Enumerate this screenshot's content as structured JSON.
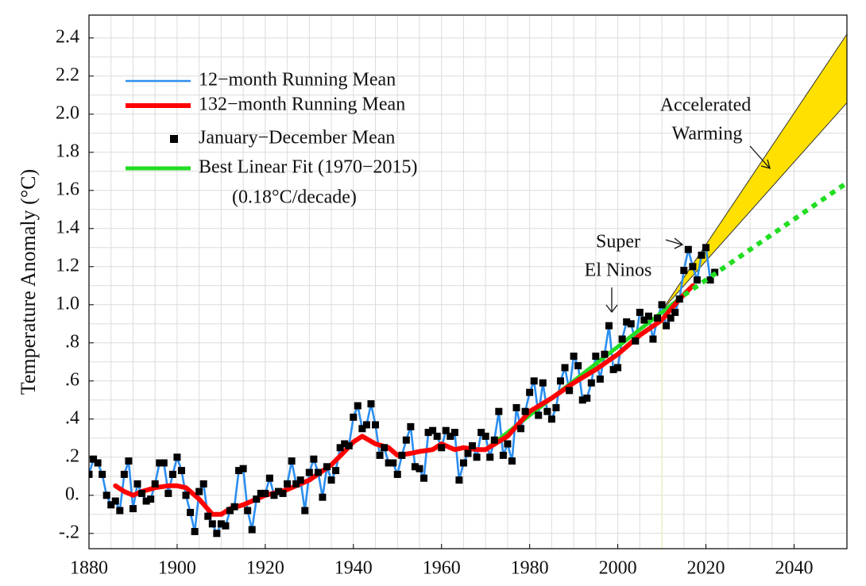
{
  "chart_data": {
    "type": "line",
    "ylabel": "Temperature Anomaly (°C)",
    "xlim": [
      1880,
      2052
    ],
    "ylim": [
      -0.28,
      2.52
    ],
    "xticks": [
      1880,
      1900,
      1920,
      1940,
      1960,
      1980,
      2000,
      2020,
      2040
    ],
    "yticks": [
      {
        "value": -0.2,
        "label": "-.2"
      },
      {
        "value": 0,
        "label": "0."
      },
      {
        "value": 0.2,
        "label": ".2"
      },
      {
        "value": 0.4,
        "label": ".4"
      },
      {
        "value": 0.6,
        "label": ".6"
      },
      {
        "value": 0.8,
        "label": ".8"
      },
      {
        "value": 1,
        "label": "1.0"
      },
      1.2,
      1.4,
      1.6,
      1.8,
      {
        "value": 2,
        "label": "2.0"
      },
      2.2,
      2.4
    ],
    "grid": true,
    "x": [
      1880,
      1881,
      1882,
      1883,
      1884,
      1885,
      1886,
      1887,
      1888,
      1889,
      1890,
      1891,
      1892,
      1893,
      1894,
      1895,
      1896,
      1897,
      1898,
      1899,
      1900,
      1901,
      1902,
      1903,
      1904,
      1905,
      1906,
      1907,
      1908,
      1909,
      1910,
      1911,
      1912,
      1913,
      1914,
      1915,
      1916,
      1917,
      1918,
      1919,
      1920,
      1921,
      1922,
      1923,
      1924,
      1925,
      1926,
      1927,
      1928,
      1929,
      1930,
      1931,
      1932,
      1933,
      1934,
      1935,
      1936,
      1937,
      1938,
      1939,
      1940,
      1941,
      1942,
      1943,
      1944,
      1945,
      1946,
      1947,
      1948,
      1949,
      1950,
      1951,
      1952,
      1953,
      1954,
      1955,
      1956,
      1957,
      1958,
      1959,
      1960,
      1961,
      1962,
      1963,
      1964,
      1965,
      1966,
      1967,
      1968,
      1969,
      1970,
      1971,
      1972,
      1973,
      1974,
      1975,
      1976,
      1977,
      1978,
      1979,
      1980,
      1981,
      1982,
      1983,
      1984,
      1985,
      1986,
      1987,
      1988,
      1989,
      1990,
      1991,
      1992,
      1993,
      1994,
      1995,
      1996,
      1997,
      1998,
      1999,
      2000,
      2001,
      2002,
      2003,
      2004,
      2005,
      2006,
      2007,
      2008,
      2009,
      2010,
      2011,
      2012,
      2013,
      2014,
      2015,
      2016,
      2017,
      2018,
      2019,
      2020,
      2021,
      2022
    ],
    "series": [
      {
        "name": "12−month Running Mean",
        "type": "line",
        "color": "#2b8ef0",
        "values": [
          0.11,
          0.19,
          0.17,
          0.11,
          0.0,
          -0.05,
          -0.03,
          -0.08,
          0.11,
          0.18,
          -0.07,
          0.06,
          0.01,
          -0.03,
          -0.02,
          0.06,
          0.17,
          0.17,
          0.01,
          0.11,
          0.2,
          0.13,
          0.0,
          -0.09,
          -0.19,
          0.02,
          0.06,
          -0.11,
          -0.15,
          -0.2,
          -0.15,
          -0.16,
          -0.08,
          -0.06,
          0.13,
          0.14,
          -0.08,
          -0.18,
          -0.02,
          0.01,
          0.01,
          0.09,
          0.0,
          0.02,
          0.01,
          0.06,
          0.18,
          0.06,
          0.08,
          -0.08,
          0.12,
          0.19,
          0.12,
          -0.01,
          0.15,
          0.08,
          0.13,
          0.25,
          0.27,
          0.26,
          0.41,
          0.47,
          0.35,
          0.37,
          0.48,
          0.37,
          0.21,
          0.25,
          0.17,
          0.17,
          0.11,
          0.21,
          0.29,
          0.36,
          0.15,
          0.14,
          0.09,
          0.33,
          0.34,
          0.31,
          0.25,
          0.34,
          0.31,
          0.33,
          0.08,
          0.17,
          0.22,
          0.26,
          0.2,
          0.33,
          0.31,
          0.2,
          0.29,
          0.44,
          0.21,
          0.27,
          0.18,
          0.46,
          0.35,
          0.44,
          0.54,
          0.6,
          0.42,
          0.59,
          0.44,
          0.4,
          0.46,
          0.6,
          0.67,
          0.55,
          0.73,
          0.68,
          0.5,
          0.51,
          0.59,
          0.73,
          0.61,
          0.74,
          0.89,
          0.66,
          0.67,
          0.82,
          0.91,
          0.9,
          0.81,
          0.96,
          0.92,
          0.94,
          0.82,
          0.93,
          1.0,
          0.89,
          0.93,
          0.96,
          1.03,
          1.18,
          1.29,
          1.2,
          1.13,
          1.26,
          1.3,
          1.13,
          1.17
        ]
      },
      {
        "name": "132−month Running Mean",
        "type": "line",
        "color": "#ff0000",
        "x": [
          1886,
          1888,
          1890,
          1892,
          1895,
          1898,
          1900,
          1902,
          1905,
          1908,
          1910,
          1912,
          1915,
          1918,
          1920,
          1925,
          1930,
          1935,
          1938,
          1940,
          1942,
          1945,
          1948,
          1950,
          1953,
          1955,
          1958,
          1960,
          1963,
          1965,
          1968,
          1970,
          1975,
          1980,
          1985,
          1990,
          1995,
          2000,
          2005,
          2010,
          2014,
          2017
        ],
        "values": [
          0.05,
          0.02,
          0.0,
          0.02,
          0.04,
          0.05,
          0.05,
          0.04,
          -0.02,
          -0.1,
          -0.1,
          -0.07,
          -0.05,
          -0.02,
          0.0,
          0.03,
          0.08,
          0.16,
          0.23,
          0.28,
          0.31,
          0.27,
          0.25,
          0.21,
          0.22,
          0.23,
          0.24,
          0.27,
          0.24,
          0.25,
          0.24,
          0.24,
          0.31,
          0.44,
          0.51,
          0.59,
          0.66,
          0.74,
          0.84,
          0.92,
          1.03,
          1.1
        ]
      },
      {
        "name": "January−December Mean",
        "type": "scatter",
        "color": "#000000",
        "values": [
          0.11,
          0.19,
          0.17,
          0.11,
          0.0,
          -0.05,
          -0.03,
          -0.08,
          0.11,
          0.18,
          -0.07,
          0.06,
          0.01,
          -0.03,
          -0.02,
          0.06,
          0.17,
          0.17,
          0.01,
          0.11,
          0.2,
          0.13,
          0.0,
          -0.09,
          -0.19,
          0.02,
          0.06,
          -0.11,
          -0.15,
          -0.2,
          -0.15,
          -0.16,
          -0.08,
          -0.06,
          0.13,
          0.14,
          -0.08,
          -0.18,
          -0.02,
          0.01,
          0.01,
          0.09,
          0.0,
          0.02,
          0.01,
          0.06,
          0.18,
          0.06,
          0.08,
          -0.08,
          0.12,
          0.19,
          0.12,
          -0.01,
          0.15,
          0.08,
          0.13,
          0.25,
          0.27,
          0.26,
          0.41,
          0.47,
          0.35,
          0.37,
          0.48,
          0.37,
          0.21,
          0.25,
          0.17,
          0.17,
          0.11,
          0.21,
          0.29,
          0.36,
          0.15,
          0.14,
          0.09,
          0.33,
          0.34,
          0.31,
          0.25,
          0.34,
          0.31,
          0.33,
          0.08,
          0.17,
          0.22,
          0.26,
          0.2,
          0.33,
          0.31,
          0.2,
          0.29,
          0.44,
          0.21,
          0.27,
          0.18,
          0.46,
          0.35,
          0.44,
          0.54,
          0.6,
          0.42,
          0.59,
          0.44,
          0.4,
          0.46,
          0.6,
          0.67,
          0.55,
          0.73,
          0.68,
          0.5,
          0.51,
          0.59,
          0.73,
          0.61,
          0.74,
          0.89,
          0.66,
          0.67,
          0.82,
          0.91,
          0.9,
          0.81,
          0.96,
          0.92,
          0.94,
          0.82,
          0.93,
          1.0,
          0.89,
          0.93,
          0.96,
          1.03,
          1.18,
          1.29,
          1.2,
          1.13,
          1.26,
          1.3,
          1.13,
          1.17
        ]
      },
      {
        "name": "Best Linear Fit (1970−2015)",
        "type": "line",
        "color": "#22dd22",
        "x": [
          1970,
          2015
        ],
        "values": [
          0.24,
          1.05
        ]
      }
    ],
    "legend_note": "(0.18°C/decade)",
    "projection": {
      "x": [
        2015,
        2052
      ],
      "values": [
        1.05,
        1.64
      ],
      "color": "#22dd22",
      "style": "dotted"
    },
    "band": {
      "x": [
        2010,
        2052
      ],
      "upper": [
        0.97,
        2.42
      ],
      "lower": [
        0.97,
        2.06
      ],
      "color": "#ffe000"
    },
    "annotations": [
      {
        "lines": [
          "Accelerated",
          "Warming"
        ]
      },
      {
        "lines": [
          "Super",
          "El Ninos"
        ]
      }
    ]
  }
}
